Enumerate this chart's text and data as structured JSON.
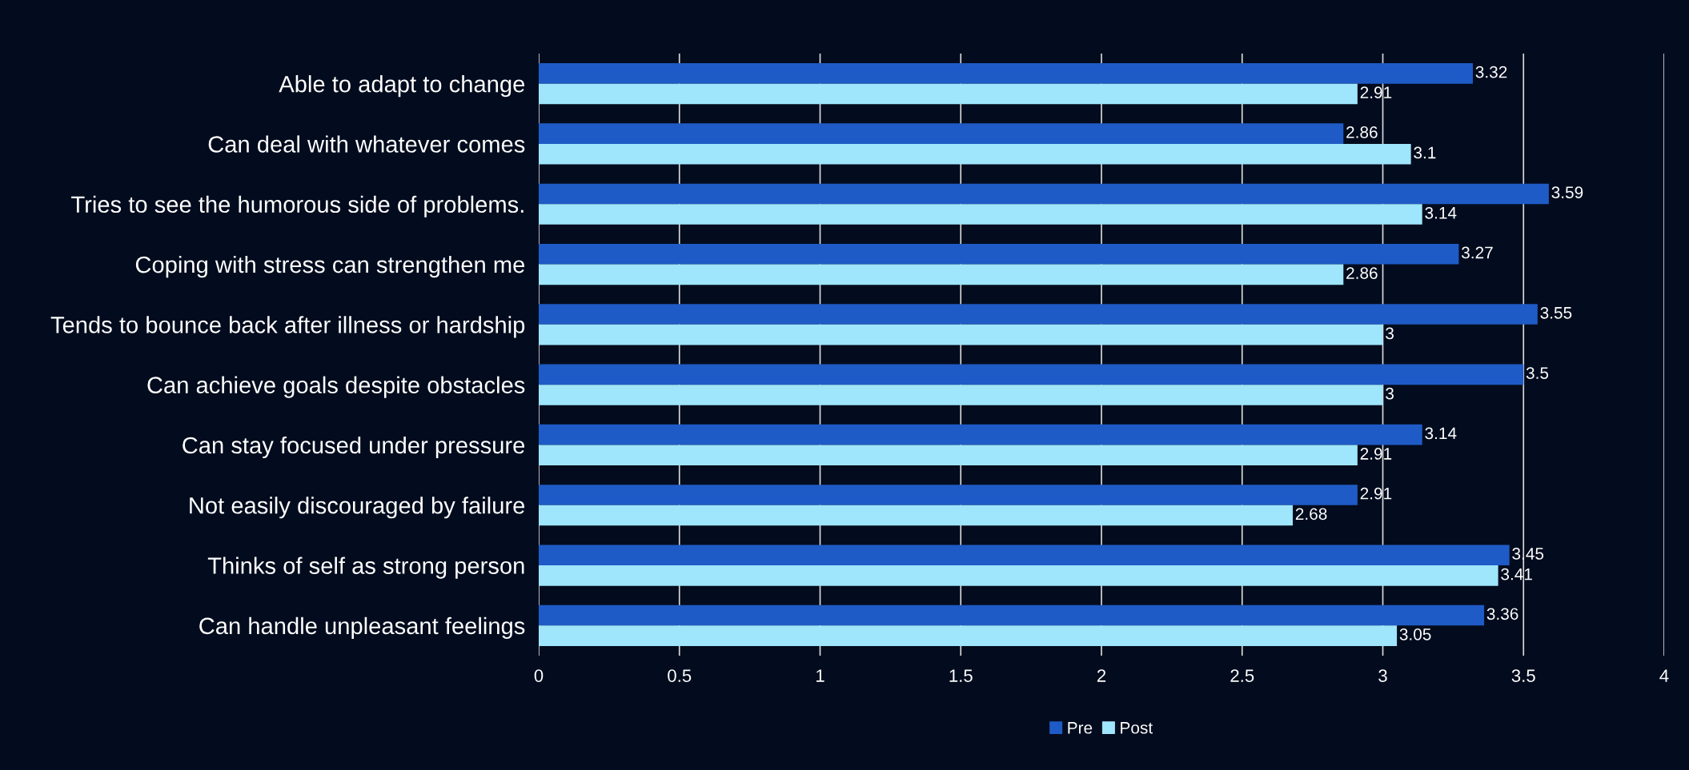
{
  "chart_data": {
    "type": "bar",
    "orientation": "horizontal",
    "categories": [
      "Able to adapt to change",
      "Can deal with whatever comes",
      "Tries to see the humorous side of problems.",
      "Coping with stress can strengthen me",
      "Tends to bounce back after illness or hardship",
      "Can achieve goals despite obstacles",
      "Can stay focused under pressure",
      "Not easily discouraged by failure",
      "Thinks of self as strong person",
      "Can handle unpleasant feelings"
    ],
    "series": [
      {
        "name": "Pre",
        "color": "#1f5bc6",
        "values": [
          3.32,
          2.86,
          3.59,
          3.27,
          3.55,
          3.5,
          3.14,
          2.91,
          3.45,
          3.36
        ]
      },
      {
        "name": "Post",
        "color": "#9fe5fb",
        "values": [
          2.91,
          3.1,
          3.14,
          2.86,
          3,
          3,
          2.91,
          2.68,
          3.41,
          3.05
        ]
      }
    ],
    "xlim": [
      0,
      4
    ],
    "xticks": [
      0,
      0.5,
      1,
      1.5,
      2,
      2.5,
      3,
      3.5,
      4
    ],
    "grid": "x",
    "legend": "bottom",
    "data_labels": true
  }
}
